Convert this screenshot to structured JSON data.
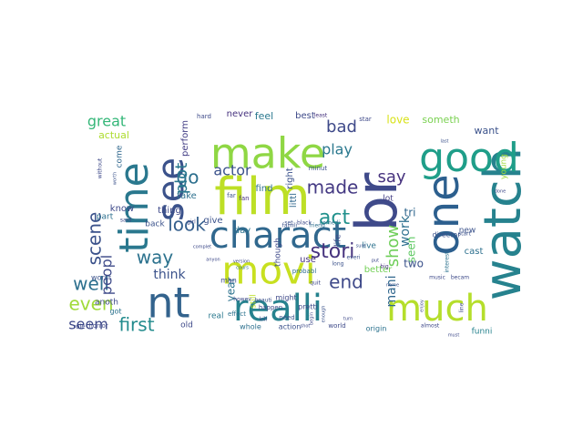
{
  "words": [
    {
      "text": "br",
      "color": "#3f4a8a"
    },
    {
      "text": "watch",
      "color": "#26828e"
    },
    {
      "text": "one",
      "color": "#2c5f8e"
    },
    {
      "text": "good",
      "color": "#1f9e89"
    },
    {
      "text": "time",
      "color": "#2a788e"
    },
    {
      "text": "make",
      "color": "#8fd744"
    },
    {
      "text": "film",
      "color": "#bddf26"
    },
    {
      "text": "see",
      "color": "#3b528b"
    },
    {
      "text": "charact",
      "color": "#31688e"
    },
    {
      "text": "movi",
      "color": "#c8e020"
    },
    {
      "text": "nt",
      "color": "#33638d"
    },
    {
      "text": "realli",
      "color": "#26828e"
    },
    {
      "text": "much",
      "color": "#b5de2b"
    },
    {
      "text": "made",
      "color": "#443983"
    },
    {
      "text": "act",
      "color": "#21918c"
    },
    {
      "text": "stori",
      "color": "#46337e"
    },
    {
      "text": "well",
      "color": "#2d708e"
    },
    {
      "text": "scene",
      "color": "#3b528b"
    },
    {
      "text": "go",
      "color": "#2d708e"
    },
    {
      "text": "plot",
      "color": "#2a788e"
    },
    {
      "text": "show",
      "color": "#6ece58"
    },
    {
      "text": "end",
      "color": "#3e4989"
    },
    {
      "text": "way",
      "color": "#2c728e"
    },
    {
      "text": "even",
      "color": "#a0da39"
    },
    {
      "text": "first",
      "color": "#228b8d"
    },
    {
      "text": "look",
      "color": "#355f8d"
    },
    {
      "text": "great",
      "color": "#35b779"
    },
    {
      "text": "bad",
      "color": "#3e4989"
    },
    {
      "text": "play",
      "color": "#2a788e"
    },
    {
      "text": "say",
      "color": "#46327e"
    },
    {
      "text": "actor",
      "color": "#3b528b"
    },
    {
      "text": "peopl",
      "color": "#3e4a89"
    },
    {
      "text": "seem",
      "color": "#3e4989"
    },
    {
      "text": "work",
      "color": "#2d708e"
    },
    {
      "text": "mani",
      "color": "#31688e"
    },
    {
      "text": "seen",
      "color": "#5ec962"
    },
    {
      "text": "think",
      "color": "#3b528b"
    },
    {
      "text": "year",
      "color": "#2c728e"
    },
    {
      "text": "two",
      "color": "#3b528b"
    },
    {
      "text": "tri",
      "color": "#31688e"
    },
    {
      "text": "love",
      "color": "#d8e219"
    },
    {
      "text": "someth",
      "color": "#7ad151"
    },
    {
      "text": "want",
      "color": "#3b528b"
    },
    {
      "text": "best",
      "color": "#3e4a89"
    },
    {
      "text": "feel",
      "color": "#2a788e"
    },
    {
      "text": "never",
      "color": "#46327e"
    },
    {
      "text": "actual",
      "color": "#addc30"
    },
    {
      "text": "come",
      "color": "#31688e"
    },
    {
      "text": "perform",
      "color": "#433e85"
    },
    {
      "text": "find",
      "color": "#2d708e"
    },
    {
      "text": "right",
      "color": "#3b528b"
    },
    {
      "text": "littl",
      "color": "#31688e"
    },
    {
      "text": "know",
      "color": "#3e4989"
    },
    {
      "text": "thing",
      "color": "#3e4a89"
    },
    {
      "text": "take",
      "color": "#2d708e"
    },
    {
      "text": "give",
      "color": "#3b528b"
    },
    {
      "text": "day",
      "color": "#2c728e"
    },
    {
      "text": "though",
      "color": "#3e4989"
    },
    {
      "text": "use",
      "color": "#46327e"
    },
    {
      "text": "better",
      "color": "#73d056"
    },
    {
      "text": "cast",
      "color": "#2d708e"
    },
    {
      "text": "young",
      "color": "#a0da39"
    },
    {
      "text": "new",
      "color": "#3b528b"
    },
    {
      "text": "live",
      "color": "#2c728e"
    },
    {
      "text": "life",
      "color": "#3e4a89"
    },
    {
      "text": "lot",
      "color": "#433e85"
    },
    {
      "text": "director",
      "color": "#3b528b"
    },
    {
      "text": "funni",
      "color": "#26828e"
    },
    {
      "text": "old",
      "color": "#3e4989"
    },
    {
      "text": "real",
      "color": "#2a788e"
    },
    {
      "text": "part",
      "color": "#2d708e"
    },
    {
      "text": "back",
      "color": "#3b528b"
    },
    {
      "text": "anoth",
      "color": "#3e4a89"
    },
    {
      "text": "still",
      "color": "#bddf26"
    },
    {
      "text": "man",
      "color": "#3e4989"
    },
    {
      "text": "got",
      "color": "#2c728e"
    },
    {
      "text": "worst",
      "color": "#3b528b"
    },
    {
      "text": "role",
      "color": "#3e4a89"
    },
    {
      "text": "horror",
      "color": "#3e4989"
    },
    {
      "text": "whole",
      "color": "#2d708e"
    },
    {
      "text": "action",
      "color": "#3b528b"
    },
    {
      "text": "world",
      "color": "#3e4a89"
    },
    {
      "text": "origin",
      "color": "#2c728e"
    },
    {
      "text": "minut",
      "color": "#3b528b"
    },
    {
      "text": "might",
      "color": "#3e4989"
    },
    {
      "text": "pretti",
      "color": "#3e4a89"
    },
    {
      "text": "probabl",
      "color": "#2d708e"
    },
    {
      "text": "need",
      "color": "#3b528b"
    },
    {
      "text": "effect",
      "color": "#2c728e"
    },
    {
      "text": "happen",
      "color": "#3e4a89"
    },
    {
      "text": "fan",
      "color": "#46327e"
    },
    {
      "text": "far",
      "color": "#3b528b"
    },
    {
      "text": "star",
      "color": "#3e4989"
    },
    {
      "text": "hard",
      "color": "#3e4a89"
    },
    {
      "text": "least",
      "color": "#46327e"
    },
    {
      "text": "famili",
      "color": "#3b528b"
    },
    {
      "text": "friend",
      "color": "#2d708e"
    },
    {
      "text": "quit",
      "color": "#3e4989"
    },
    {
      "text": "kill",
      "color": "#3e4a89"
    },
    {
      "text": "long",
      "color": "#3b528b"
    },
    {
      "text": "big",
      "color": "#46327e"
    },
    {
      "text": "music",
      "color": "#3e4989"
    },
    {
      "text": "becam",
      "color": "#3e4a89"
    },
    {
      "text": "everi",
      "color": "#3b528b"
    },
    {
      "text": "almost",
      "color": "#3e4989"
    },
    {
      "text": "interest",
      "color": "#2c728e"
    },
    {
      "text": "start",
      "color": "#3b528b"
    },
    {
      "text": "said",
      "color": "#3e4a89"
    },
    {
      "text": "comedi",
      "color": "#2d708e"
    },
    {
      "text": "black",
      "color": "#3e4989"
    },
    {
      "text": "set",
      "color": "#3b528b"
    },
    {
      "text": "girl",
      "color": "#3e4a89"
    },
    {
      "text": "without",
      "color": "#3e4989"
    },
    {
      "text": "worth",
      "color": "#3b528b"
    },
    {
      "text": "enjoy",
      "color": "#3e4a89"
    },
    {
      "text": "howev",
      "color": "#3e4989"
    },
    {
      "text": "beauti",
      "color": "#3b528b"
    },
    {
      "text": "shot",
      "color": "#3e4a89"
    },
    {
      "text": "cours",
      "color": "#2d708e"
    },
    {
      "text": "turn",
      "color": "#3e4989"
    },
    {
      "text": "name",
      "color": "#3b528b"
    },
    {
      "text": "line",
      "color": "#3e4a89"
    },
    {
      "text": "begin",
      "color": "#3e4989"
    },
    {
      "text": "enough",
      "color": "#3b528b"
    },
    {
      "text": "complet",
      "color": "#3e4a89"
    },
    {
      "text": "anyon",
      "color": "#3e4989"
    },
    {
      "text": "last",
      "color": "#3b528b"
    },
    {
      "text": "must",
      "color": "#3e4a89"
    },
    {
      "text": "version",
      "color": "#3e4989"
    },
    {
      "text": "sure",
      "color": "#3b528b"
    },
    {
      "text": "put",
      "color": "#3e4a89"
    },
    {
      "text": "done",
      "color": "#3e4989"
    }
  ]
}
